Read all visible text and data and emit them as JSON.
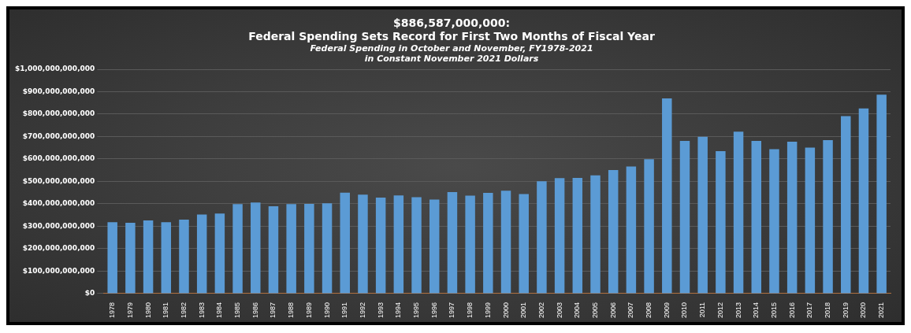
{
  "chart_data": {
    "type": "bar",
    "title": "$886,587,000,000:\nFederal Spending Sets Record for First Two Months of Fiscal Year",
    "subtitle": "Federal Spending in October and November, FY1978-2021\nin Constant November 2021 Dollars",
    "categories": [
      "1978",
      "1979",
      "1980",
      "1981",
      "1982",
      "1983",
      "1984",
      "1985",
      "1986",
      "1987",
      "1988",
      "1989",
      "1990",
      "1991",
      "1992",
      "1993",
      "1994",
      "1995",
      "1996",
      "1997",
      "1998",
      "1999",
      "2000",
      "2001",
      "2002",
      "2003",
      "2004",
      "2005",
      "2006",
      "2007",
      "2008",
      "2009",
      "2010",
      "2011",
      "2012",
      "2013",
      "2014",
      "2015",
      "2016",
      "2017",
      "2018",
      "2019",
      "2020",
      "2021"
    ],
    "values": [
      318000000000,
      316000000000,
      326000000000,
      318000000000,
      330000000000,
      353000000000,
      357000000000,
      399000000000,
      406000000000,
      389000000000,
      399000000000,
      400000000000,
      403000000000,
      450000000000,
      441000000000,
      428000000000,
      438000000000,
      430000000000,
      419000000000,
      453000000000,
      437000000000,
      449000000000,
      459000000000,
      444000000000,
      501000000000,
      515000000000,
      516000000000,
      527000000000,
      551000000000,
      567000000000,
      599000000000,
      870000000000,
      681000000000,
      699000000000,
      635000000000,
      722000000000,
      681000000000,
      644000000000,
      677000000000,
      651000000000,
      684000000000,
      791000000000,
      825000000000,
      886587000000
    ],
    "color": "#5b9bd5",
    "ylim": [
      0,
      1000000000000
    ],
    "yticks": [
      {
        "value": 0,
        "label": "$0"
      },
      {
        "value": 100000000000,
        "label": "$100,000,000,000"
      },
      {
        "value": 200000000000,
        "label": "$200,000,000,000"
      },
      {
        "value": 300000000000,
        "label": "$300,000,000,000"
      },
      {
        "value": 400000000000,
        "label": "$400,000,000,000"
      },
      {
        "value": 500000000000,
        "label": "$500,000,000,000"
      },
      {
        "value": 600000000000,
        "label": "$600,000,000,000"
      },
      {
        "value": 700000000000,
        "label": "$700,000,000,000"
      },
      {
        "value": 800000000000,
        "label": "$800,000,000,000"
      },
      {
        "value": 900000000000,
        "label": "$900,000,000,000"
      },
      {
        "value": 1000000000000,
        "label": "$1,000,000,000,000"
      }
    ],
    "grid": "y",
    "legend": false
  }
}
